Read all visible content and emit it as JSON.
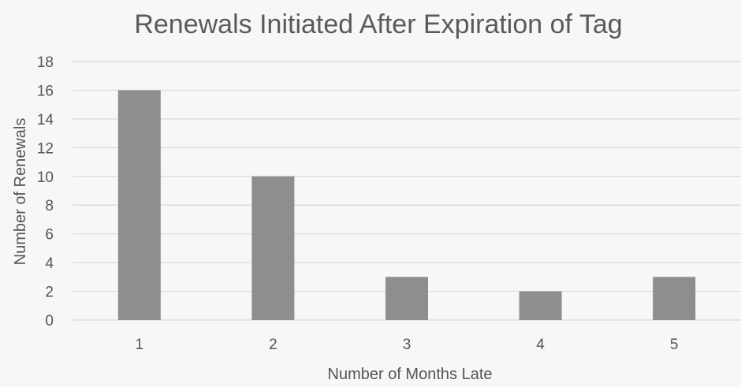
{
  "chart_data": {
    "type": "bar",
    "title": "Renewals Initiated After Expiration of Tag",
    "xlabel": "Number of Months Late",
    "ylabel": "Number of Renewals",
    "categories": [
      "1",
      "2",
      "3",
      "4",
      "5"
    ],
    "values": [
      16,
      10,
      3,
      2,
      3
    ],
    "ylim": [
      0,
      18
    ],
    "ytick_step": 2,
    "grid": true,
    "legend": "none"
  },
  "colors": {
    "bar": "#8e8e8e",
    "grid": "#d9d9d9",
    "text": "#555555",
    "title": "#5a5a5a",
    "background": "#f7f7f5"
  }
}
